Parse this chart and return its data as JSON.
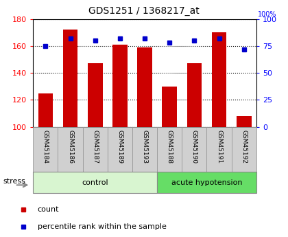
{
  "title": "GDS1251 / 1368217_at",
  "samples": [
    "GSM45184",
    "GSM45186",
    "GSM45187",
    "GSM45189",
    "GSM45193",
    "GSM45188",
    "GSM45190",
    "GSM45191",
    "GSM45192"
  ],
  "counts": [
    125,
    172,
    147,
    161,
    159,
    130,
    147,
    170,
    108
  ],
  "percentiles": [
    75,
    82,
    80,
    82,
    82,
    78,
    80,
    82,
    72
  ],
  "bar_color": "#cc0000",
  "dot_color": "#0000cc",
  "ylim_left": [
    100,
    180
  ],
  "ylim_right": [
    0,
    100
  ],
  "yticks_left": [
    100,
    120,
    140,
    160,
    180
  ],
  "yticks_right": [
    0,
    25,
    50,
    75,
    100
  ],
  "ctrl_color": "#d8f5d0",
  "acute_color": "#66dd66",
  "sample_bg": "#d0d0d0",
  "stress_label": "stress",
  "legend_count": "count",
  "legend_pct": "percentile rank within the sample",
  "n_control": 5,
  "n_total": 9
}
